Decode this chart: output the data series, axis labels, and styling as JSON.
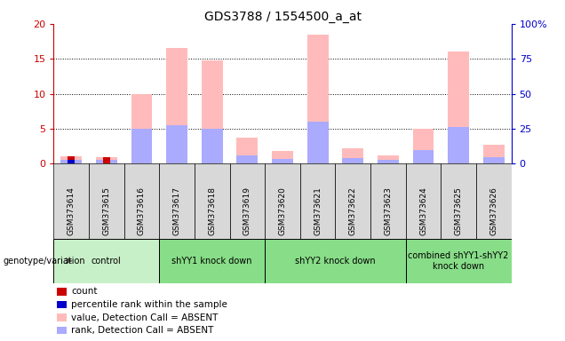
{
  "title": "GDS3788 / 1554500_a_at",
  "samples": [
    "GSM373614",
    "GSM373615",
    "GSM373616",
    "GSM373617",
    "GSM373618",
    "GSM373619",
    "GSM373620",
    "GSM373621",
    "GSM373622",
    "GSM373623",
    "GSM373624",
    "GSM373625",
    "GSM373626"
  ],
  "absent_value": [
    1.0,
    0.9,
    10.0,
    16.5,
    14.8,
    3.7,
    1.8,
    18.5,
    2.2,
    1.2,
    5.0,
    16.0,
    2.7
  ],
  "absent_rank": [
    2.5,
    2.5,
    25.0,
    27.5,
    25.0,
    6.0,
    3.5,
    30.0,
    4.0,
    3.0,
    10.0,
    26.0,
    4.5
  ],
  "count_values": [
    1.0,
    0.9,
    0.0,
    0.0,
    0.0,
    0.0,
    0.0,
    0.0,
    0.0,
    0.0,
    0.0,
    0.0,
    0.0
  ],
  "percentile_values": [
    2.5,
    0.0,
    0.0,
    0.0,
    0.0,
    0.0,
    0.0,
    0.0,
    0.0,
    0.0,
    0.0,
    0.0,
    0.0
  ],
  "ylim_left": [
    0,
    20
  ],
  "ylim_right": [
    0,
    100
  ],
  "yticks_left": [
    0,
    5,
    10,
    15,
    20
  ],
  "yticks_right": [
    0,
    25,
    50,
    75,
    100
  ],
  "ytick_labels_left": [
    "0",
    "5",
    "10",
    "15",
    "20"
  ],
  "ytick_labels_right": [
    "0",
    "25",
    "50",
    "75",
    "100%"
  ],
  "groups": [
    {
      "label": "control",
      "start": 0,
      "end": 2,
      "color": "#c8f0c8"
    },
    {
      "label": "shYY1 knock down",
      "start": 3,
      "end": 5,
      "color": "#88dd88"
    },
    {
      "label": "shYY2 knock down",
      "start": 6,
      "end": 9,
      "color": "#88dd88"
    },
    {
      "label": "combined shYY1-shYY2\nknock down",
      "start": 10,
      "end": 12,
      "color": "#88dd88"
    }
  ],
  "color_absent_value": "#ffbbbb",
  "color_absent_rank": "#aaaaff",
  "color_count": "#cc0000",
  "color_percentile": "#0000cc",
  "legend_items": [
    {
      "label": "count",
      "color": "#cc0000"
    },
    {
      "label": "percentile rank within the sample",
      "color": "#0000cc"
    },
    {
      "label": "value, Detection Call = ABSENT",
      "color": "#ffbbbb"
    },
    {
      "label": "rank, Detection Call = ABSENT",
      "color": "#aaaaff"
    }
  ],
  "bar_width": 0.6,
  "gray_col": "#d8d8d8"
}
